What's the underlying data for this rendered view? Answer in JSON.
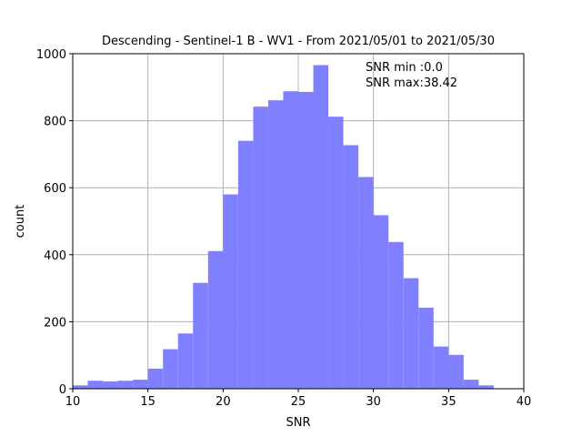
{
  "chart_data": {
    "type": "bar",
    "title": "Descending - Sentinel-1 B - WV1 - From 2021/05/01 to 2021/05/30",
    "xlabel": "SNR",
    "ylabel": "count",
    "xlim": [
      10,
      40
    ],
    "ylim": [
      0,
      1000
    ],
    "xticks": [
      "10",
      "15",
      "20",
      "25",
      "30",
      "35",
      "40"
    ],
    "yticks": [
      "0",
      "200",
      "400",
      "600",
      "800",
      "1000"
    ],
    "grid": true,
    "bin_width": 1,
    "bins": [
      {
        "start": 10,
        "end": 11,
        "count": 10
      },
      {
        "start": 11,
        "end": 12,
        "count": 24
      },
      {
        "start": 12,
        "end": 13,
        "count": 22
      },
      {
        "start": 13,
        "end": 14,
        "count": 24
      },
      {
        "start": 14,
        "end": 15,
        "count": 27
      },
      {
        "start": 15,
        "end": 16,
        "count": 60
      },
      {
        "start": 16,
        "end": 17,
        "count": 118
      },
      {
        "start": 17,
        "end": 18,
        "count": 165
      },
      {
        "start": 18,
        "end": 19,
        "count": 316
      },
      {
        "start": 19,
        "end": 20,
        "count": 411
      },
      {
        "start": 20,
        "end": 21,
        "count": 580
      },
      {
        "start": 21,
        "end": 22,
        "count": 740
      },
      {
        "start": 22,
        "end": 23,
        "count": 842
      },
      {
        "start": 23,
        "end": 24,
        "count": 861
      },
      {
        "start": 24,
        "end": 25,
        "count": 888
      },
      {
        "start": 25,
        "end": 26,
        "count": 886
      },
      {
        "start": 26,
        "end": 27,
        "count": 966
      },
      {
        "start": 27,
        "end": 28,
        "count": 812
      },
      {
        "start": 28,
        "end": 29,
        "count": 727
      },
      {
        "start": 29,
        "end": 30,
        "count": 632
      },
      {
        "start": 30,
        "end": 31,
        "count": 518
      },
      {
        "start": 31,
        "end": 32,
        "count": 438
      },
      {
        "start": 32,
        "end": 33,
        "count": 330
      },
      {
        "start": 33,
        "end": 34,
        "count": 242
      },
      {
        "start": 34,
        "end": 35,
        "count": 126
      },
      {
        "start": 35,
        "end": 36,
        "count": 101
      },
      {
        "start": 36,
        "end": 37,
        "count": 27
      },
      {
        "start": 37,
        "end": 38,
        "count": 10
      }
    ],
    "annotations": [
      "SNR min :0.0",
      "SNR max:38.42"
    ],
    "bar_color": "#8080ff",
    "grid_color": "#b0b0b0"
  }
}
